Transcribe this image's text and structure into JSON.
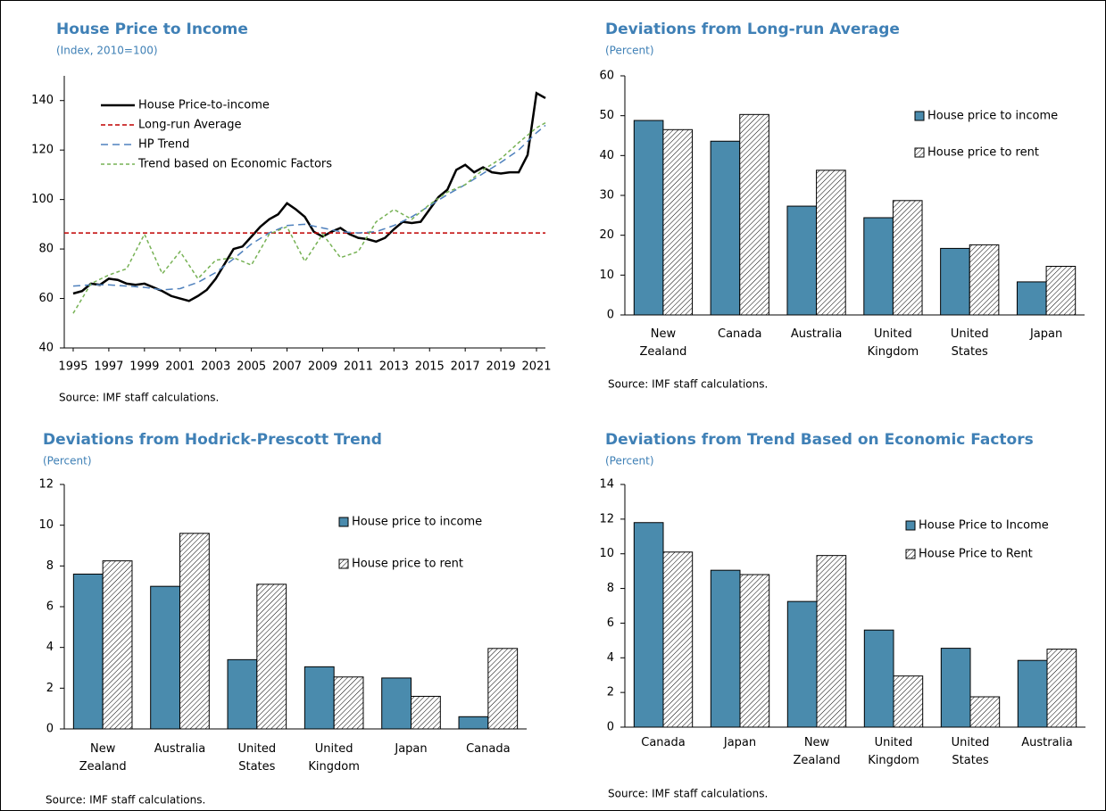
{
  "chart_data": [
    {
      "type": "line",
      "title": "House Price to Income",
      "subtitle": "(Index, 2010=100)",
      "source": "Source: IMF staff calculations.",
      "xlim": [
        1994.5,
        2021.5
      ],
      "xticks": [
        1995,
        1997,
        1999,
        2001,
        2003,
        2005,
        2007,
        2009,
        2011,
        2013,
        2015,
        2017,
        2019,
        2021
      ],
      "ylim": [
        40,
        150
      ],
      "yticks": [
        40,
        60,
        80,
        100,
        120,
        140
      ],
      "legend": "top-left",
      "series": [
        {
          "name": "House Price-to-income",
          "color": "#000000",
          "width": 2.5,
          "x": [
            1995,
            1995.5,
            1996,
            1996.5,
            1997,
            1997.5,
            1998,
            1998.5,
            1999,
            1999.5,
            2000,
            2000.5,
            2001,
            2001.5,
            2002,
            2002.5,
            2003,
            2003.5,
            2004,
            2004.5,
            2005,
            2005.5,
            2006,
            2006.5,
            2007,
            2007.5,
            2008,
            2008.5,
            2009,
            2009.5,
            2010,
            2010.5,
            2011,
            2011.5,
            2012,
            2012.5,
            2013,
            2013.5,
            2014,
            2014.5,
            2015,
            2015.5,
            2016,
            2016.5,
            2017,
            2017.5,
            2018,
            2018.5,
            2019,
            2019.5,
            2020,
            2020.5,
            2021,
            2021.5
          ],
          "values": [
            62,
            63,
            66,
            65.5,
            68,
            67.5,
            66,
            65.5,
            66,
            64.5,
            63,
            61,
            60,
            59,
            61,
            63.5,
            68,
            74,
            80,
            81,
            85,
            89,
            92,
            94,
            98.5,
            96,
            93,
            87,
            85,
            87,
            88.5,
            86,
            84.5,
            84,
            83,
            84.5,
            88,
            91,
            90.5,
            91,
            96,
            101,
            104,
            112,
            114,
            111,
            113,
            111,
            110.5,
            111,
            111,
            118,
            143,
            141
          ]
        },
        {
          "name": "Long-run Average",
          "color": "#c00000",
          "dash": "5,3",
          "width": 1.5,
          "value": 86.5
        },
        {
          "name": "HP Trend",
          "color": "#4f81bd",
          "dash": "8,5",
          "width": 1.5,
          "x": [
            1995,
            1996,
            1997,
            1998,
            1999,
            2000,
            2001,
            2002,
            2003,
            2004,
            2005,
            2006,
            2007,
            2008,
            2009,
            2010,
            2011,
            2012,
            2013,
            2014,
            2015,
            2016,
            2017,
            2018,
            2019,
            2020,
            2021,
            2021.5
          ],
          "values": [
            65,
            65.5,
            65.5,
            65,
            64.5,
            63.5,
            64,
            66.5,
            70.5,
            76,
            82,
            86.5,
            89.5,
            90,
            88.5,
            87,
            86.5,
            87,
            89.5,
            93,
            97.5,
            102,
            106,
            110.5,
            115,
            120,
            127,
            130
          ]
        },
        {
          "name": "Trend based on Economic Factors",
          "color": "#77b255",
          "dash": "4,3",
          "width": 1.5,
          "x": [
            1995,
            1996,
            1997,
            1998,
            1999,
            2000,
            2001,
            2002,
            2003,
            2004,
            2005,
            2006,
            2007,
            2008,
            2009,
            2010,
            2011,
            2012,
            2013,
            2014,
            2015,
            2016,
            2017,
            2018,
            2019,
            2020,
            2021,
            2021.5
          ],
          "values": [
            54,
            66,
            69.5,
            72,
            86,
            70,
            79,
            68,
            75.5,
            76.5,
            73.5,
            86,
            89,
            75,
            86,
            76.5,
            79,
            91,
            96,
            92,
            98,
            103,
            106,
            112,
            116.5,
            123,
            129,
            131
          ]
        }
      ]
    },
    {
      "type": "bar",
      "title": "Deviations from Long-run Average",
      "subtitle": "(Percent)",
      "source": "Source: IMF staff calculations.",
      "categories": [
        "New Zealand",
        "Canada",
        "Australia",
        "United Kingdom",
        "United States",
        "Japan"
      ],
      "ylim": [
        0,
        60
      ],
      "yticks": [
        0,
        10,
        20,
        30,
        40,
        50,
        60
      ],
      "legend": "right",
      "series": [
        {
          "name": "House price to income",
          "color": "#4a8bad",
          "values": [
            48.8,
            43.6,
            27.3,
            24.4,
            16.7,
            8.3
          ]
        },
        {
          "name": "House price to rent",
          "color": "#ffffff",
          "pattern": "hatch",
          "values": [
            46.5,
            50.3,
            36.3,
            28.7,
            17.6,
            12.2
          ]
        }
      ]
    },
    {
      "type": "bar",
      "title": "Deviations from Hodrick-Prescott Trend",
      "subtitle": "(Percent)",
      "source": "Source: IMF staff calculations.",
      "categories": [
        "New Zealand",
        "Australia",
        "United States",
        "United Kingdom",
        "Japan",
        "Canada"
      ],
      "ylim": [
        0,
        12
      ],
      "yticks": [
        0,
        2,
        4,
        6,
        8,
        10,
        12
      ],
      "legend": "right",
      "series": [
        {
          "name": "House price to income",
          "color": "#4a8bad",
          "values": [
            7.6,
            7.0,
            3.4,
            3.05,
            2.5,
            0.6
          ]
        },
        {
          "name": "House price to rent",
          "color": "#ffffff",
          "pattern": "hatch",
          "values": [
            8.25,
            9.6,
            7.1,
            2.55,
            1.6,
            3.95
          ]
        }
      ]
    },
    {
      "type": "bar",
      "title": "Deviations from Trend Based on Economic Factors",
      "subtitle": "(Percent)",
      "source": "Source: IMF staff calculations.",
      "categories": [
        "Canada",
        "Japan",
        "New Zealand",
        "United Kingdom",
        "United States",
        "Australia"
      ],
      "ylim": [
        0,
        14
      ],
      "yticks": [
        0,
        2,
        4,
        6,
        8,
        10,
        12,
        14
      ],
      "legend": "right",
      "series": [
        {
          "name": "House Price to Income",
          "color": "#4a8bad",
          "values": [
            11.8,
            9.05,
            7.25,
            5.6,
            4.55,
            3.85
          ]
        },
        {
          "name": "House Price to Rent",
          "color": "#ffffff",
          "pattern": "hatch",
          "values": [
            10.1,
            8.8,
            9.9,
            2.95,
            1.75,
            4.5
          ]
        }
      ]
    }
  ]
}
